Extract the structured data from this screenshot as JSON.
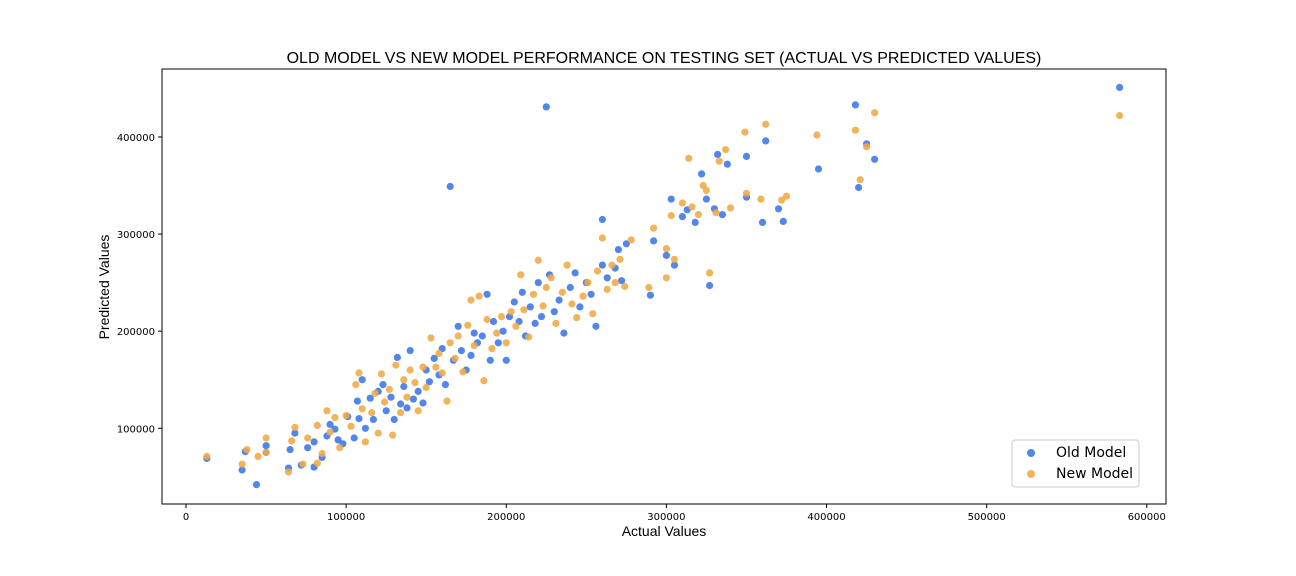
{
  "chart_data": {
    "type": "scatter",
    "title": "OLD MODEL VS NEW MODEL PERFORMANCE ON TESTING SET (ACTUAL VS PREDICTED VALUES)",
    "xlabel": "Actual Values",
    "ylabel": "Predicted Values",
    "xlim": [
      -15000,
      612000
    ],
    "ylim": [
      22000,
      470000
    ],
    "x_ticks": [
      0,
      100000,
      200000,
      300000,
      400000,
      500000,
      600000
    ],
    "y_ticks": [
      100000,
      200000,
      300000,
      400000
    ],
    "x_tick_labels": [
      "0",
      "100000",
      "200000",
      "300000",
      "400000",
      "500000",
      "600000"
    ],
    "y_tick_labels": [
      "100000",
      "200000",
      "300000",
      "400000"
    ],
    "grid": false,
    "legend_position": "lower-right",
    "series": [
      {
        "name": "Old Model",
        "color": "#3b75e8",
        "points": [
          [
            13000,
            69000
          ],
          [
            35000,
            57000
          ],
          [
            37000,
            76000
          ],
          [
            44000,
            42000
          ],
          [
            50000,
            75000
          ],
          [
            50000,
            82000
          ],
          [
            64000,
            59000
          ],
          [
            65000,
            78000
          ],
          [
            68000,
            95000
          ],
          [
            72000,
            62000
          ],
          [
            76000,
            80000
          ],
          [
            80000,
            86000
          ],
          [
            80000,
            60000
          ],
          [
            85000,
            70000
          ],
          [
            88000,
            92000
          ],
          [
            90000,
            104000
          ],
          [
            93000,
            99000
          ],
          [
            95000,
            88000
          ],
          [
            98000,
            84000
          ],
          [
            101000,
            112000
          ],
          [
            105000,
            90000
          ],
          [
            107000,
            128000
          ],
          [
            108000,
            110000
          ],
          [
            110000,
            150000
          ],
          [
            112000,
            100000
          ],
          [
            115000,
            131000
          ],
          [
            117000,
            109000
          ],
          [
            120000,
            138000
          ],
          [
            123000,
            145000
          ],
          [
            125000,
            118000
          ],
          [
            128000,
            132000
          ],
          [
            130000,
            109000
          ],
          [
            132000,
            173000
          ],
          [
            134000,
            125000
          ],
          [
            136000,
            143000
          ],
          [
            138000,
            121000
          ],
          [
            140000,
            180000
          ],
          [
            142000,
            130000
          ],
          [
            145000,
            138000
          ],
          [
            148000,
            126000
          ],
          [
            150000,
            160000
          ],
          [
            152000,
            148000
          ],
          [
            155000,
            172000
          ],
          [
            158000,
            155000
          ],
          [
            160000,
            182000
          ],
          [
            162000,
            145000
          ],
          [
            165000,
            349000
          ],
          [
            167000,
            170000
          ],
          [
            170000,
            205000
          ],
          [
            172000,
            180000
          ],
          [
            175000,
            160000
          ],
          [
            178000,
            175000
          ],
          [
            180000,
            198000
          ],
          [
            182000,
            188000
          ],
          [
            185000,
            195000
          ],
          [
            188000,
            238000
          ],
          [
            190000,
            170000
          ],
          [
            192000,
            210000
          ],
          [
            195000,
            188000
          ],
          [
            198000,
            200000
          ],
          [
            200000,
            170000
          ],
          [
            202000,
            215000
          ],
          [
            205000,
            230000
          ],
          [
            208000,
            210000
          ],
          [
            210000,
            240000
          ],
          [
            212000,
            195000
          ],
          [
            215000,
            225000
          ],
          [
            218000,
            208000
          ],
          [
            220000,
            250000
          ],
          [
            222000,
            215000
          ],
          [
            225000,
            431000
          ],
          [
            227000,
            258000
          ],
          [
            230000,
            220000
          ],
          [
            233000,
            232000
          ],
          [
            236000,
            198000
          ],
          [
            240000,
            245000
          ],
          [
            243000,
            260000
          ],
          [
            246000,
            225000
          ],
          [
            250000,
            250000
          ],
          [
            253000,
            238000
          ],
          [
            256000,
            205000
          ],
          [
            260000,
            268000
          ],
          [
            260000,
            315000
          ],
          [
            263000,
            255000
          ],
          [
            268000,
            265000
          ],
          [
            270000,
            284000
          ],
          [
            272000,
            252000
          ],
          [
            275000,
            290000
          ],
          [
            290000,
            237000
          ],
          [
            292000,
            293000
          ],
          [
            300000,
            278000
          ],
          [
            303000,
            336000
          ],
          [
            305000,
            268000
          ],
          [
            310000,
            318000
          ],
          [
            313000,
            325000
          ],
          [
            318000,
            312000
          ],
          [
            322000,
            362000
          ],
          [
            325000,
            336000
          ],
          [
            327000,
            247000
          ],
          [
            330000,
            326000
          ],
          [
            332000,
            382000
          ],
          [
            335000,
            320000
          ],
          [
            338000,
            372000
          ],
          [
            350000,
            380000
          ],
          [
            350000,
            338000
          ],
          [
            360000,
            312000
          ],
          [
            362000,
            396000
          ],
          [
            370000,
            326000
          ],
          [
            373000,
            313000
          ],
          [
            395000,
            367000
          ],
          [
            418000,
            433000
          ],
          [
            420000,
            348000
          ],
          [
            425000,
            393000
          ],
          [
            430000,
            377000
          ],
          [
            583000,
            451000
          ]
        ]
      },
      {
        "name": "New Model",
        "color": "#f0aa44",
        "points": [
          [
            13000,
            71000
          ],
          [
            35000,
            63000
          ],
          [
            38000,
            78000
          ],
          [
            45000,
            71000
          ],
          [
            50000,
            90000
          ],
          [
            50000,
            75000
          ],
          [
            64000,
            55000
          ],
          [
            66000,
            87000
          ],
          [
            68000,
            101000
          ],
          [
            73000,
            63000
          ],
          [
            76000,
            90000
          ],
          [
            82000,
            103000
          ],
          [
            82000,
            64000
          ],
          [
            85000,
            74000
          ],
          [
            88000,
            118000
          ],
          [
            90000,
            96000
          ],
          [
            93000,
            111000
          ],
          [
            96000,
            80000
          ],
          [
            100000,
            113000
          ],
          [
            103000,
            102000
          ],
          [
            106000,
            145000
          ],
          [
            108000,
            157000
          ],
          [
            110000,
            120000
          ],
          [
            112000,
            86000
          ],
          [
            116000,
            116000
          ],
          [
            118000,
            136000
          ],
          [
            120000,
            95000
          ],
          [
            122000,
            156000
          ],
          [
            124000,
            127000
          ],
          [
            127000,
            140000
          ],
          [
            129000,
            93000
          ],
          [
            131000,
            165000
          ],
          [
            134000,
            116000
          ],
          [
            136000,
            150000
          ],
          [
            138000,
            132000
          ],
          [
            140000,
            160000
          ],
          [
            143000,
            147000
          ],
          [
            145000,
            118000
          ],
          [
            148000,
            163000
          ],
          [
            150000,
            142000
          ],
          [
            153000,
            193000
          ],
          [
            156000,
            163000
          ],
          [
            158000,
            177000
          ],
          [
            160000,
            157000
          ],
          [
            163000,
            128000
          ],
          [
            165000,
            188000
          ],
          [
            168000,
            172000
          ],
          [
            170000,
            195000
          ],
          [
            173000,
            158000
          ],
          [
            176000,
            206000
          ],
          [
            178000,
            232000
          ],
          [
            180000,
            185000
          ],
          [
            183000,
            236000
          ],
          [
            186000,
            149000
          ],
          [
            188000,
            212000
          ],
          [
            191000,
            182000
          ],
          [
            194000,
            198000
          ],
          [
            197000,
            215000
          ],
          [
            200000,
            188000
          ],
          [
            203000,
            220000
          ],
          [
            206000,
            205000
          ],
          [
            209000,
            258000
          ],
          [
            211000,
            222000
          ],
          [
            214000,
            194000
          ],
          [
            217000,
            238000
          ],
          [
            220000,
            273000
          ],
          [
            223000,
            226000
          ],
          [
            225000,
            245000
          ],
          [
            228000,
            255000
          ],
          [
            231000,
            208000
          ],
          [
            235000,
            240000
          ],
          [
            238000,
            268000
          ],
          [
            241000,
            228000
          ],
          [
            244000,
            214000
          ],
          [
            248000,
            236000
          ],
          [
            251000,
            250000
          ],
          [
            254000,
            218000
          ],
          [
            257000,
            262000
          ],
          [
            260000,
            296000
          ],
          [
            263000,
            243000
          ],
          [
            266000,
            268000
          ],
          [
            268000,
            250000
          ],
          [
            271000,
            274000
          ],
          [
            274000,
            246000
          ],
          [
            278000,
            294000
          ],
          [
            289000,
            245000
          ],
          [
            292000,
            306000
          ],
          [
            300000,
            255000
          ],
          [
            300000,
            285000
          ],
          [
            303000,
            319000
          ],
          [
            305000,
            274000
          ],
          [
            310000,
            332000
          ],
          [
            314000,
            378000
          ],
          [
            316000,
            328000
          ],
          [
            320000,
            320000
          ],
          [
            323000,
            350000
          ],
          [
            325000,
            345000
          ],
          [
            327000,
            260000
          ],
          [
            331000,
            322000
          ],
          [
            333000,
            375000
          ],
          [
            337000,
            387000
          ],
          [
            340000,
            327000
          ],
          [
            349000,
            405000
          ],
          [
            350000,
            342000
          ],
          [
            359000,
            336000
          ],
          [
            362000,
            413000
          ],
          [
            372000,
            335000
          ],
          [
            375000,
            339000
          ],
          [
            394000,
            402000
          ],
          [
            418000,
            407000
          ],
          [
            421000,
            356000
          ],
          [
            425000,
            390000
          ],
          [
            430000,
            425000
          ],
          [
            583000,
            422000
          ]
        ]
      }
    ]
  }
}
